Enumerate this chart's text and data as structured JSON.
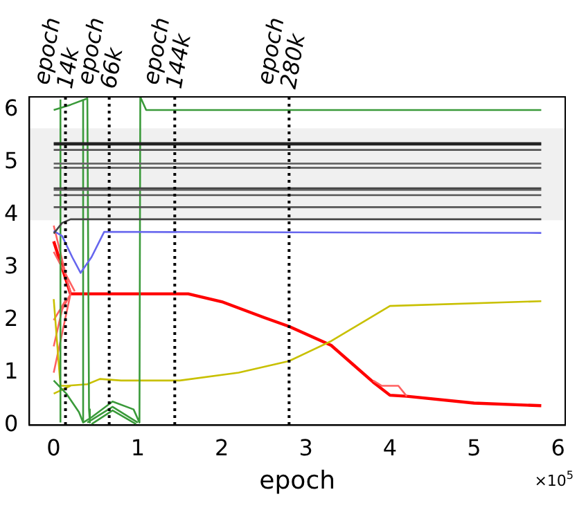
{
  "chart_data": {
    "type": "line",
    "xlabel": "epoch",
    "xlim": [
      -0.29,
      6.085
    ],
    "ylim": [
      0,
      6.25
    ],
    "xticks": [
      0,
      1,
      2,
      3,
      4,
      5,
      6
    ],
    "yticks": [
      0,
      1,
      2,
      3,
      4,
      5,
      6
    ],
    "grid": false,
    "legend": false,
    "marker": "none",
    "line_style": "solid",
    "annotations": [
      "×10$^{5}$"
    ],
    "bands": [
      {
        "axis": "y",
        "from": 3.9,
        "to": 5.65,
        "color": "#f0f0f0"
      }
    ],
    "ref_lines": [
      {
        "axis": "x",
        "value": 0.14,
        "label": "epoch 14k",
        "color": "#000000",
        "line_style": "dotted"
      },
      {
        "axis": "x",
        "value": 0.66,
        "label": "epoch 66k",
        "color": "#000000",
        "line_style": "dotted"
      },
      {
        "axis": "x",
        "value": 1.44,
        "label": "epoch 144k",
        "color": "#000000",
        "line_style": "dotted"
      },
      {
        "axis": "x",
        "value": 2.8,
        "label": "epoch 280k",
        "color": "#000000",
        "line_style": "dotted"
      }
    ],
    "series": [
      {
        "color": "#222222",
        "x": [
          0,
          5.8
        ],
        "values": [
          5.37,
          5.37
        ]
      },
      {
        "color": "#222222",
        "x": [
          0,
          5.8
        ],
        "values": [
          5.34,
          5.34
        ]
      },
      {
        "color": "#555555",
        "x": [
          0,
          5.8
        ],
        "values": [
          5.24,
          5.24
        ]
      },
      {
        "color": "#666666",
        "x": [
          0,
          5.8
        ],
        "values": [
          4.98,
          4.98
        ]
      },
      {
        "color": "#555555",
        "x": [
          0,
          5.8
        ],
        "values": [
          4.9,
          4.9
        ]
      },
      {
        "color": "#444444",
        "x": [
          0,
          5.8
        ],
        "values": [
          4.51,
          4.51
        ]
      },
      {
        "color": "#666666",
        "x": [
          0,
          5.8
        ],
        "values": [
          4.48,
          4.48
        ]
      },
      {
        "color": "#555555",
        "x": [
          0,
          5.8
        ],
        "values": [
          4.38,
          4.38
        ]
      },
      {
        "color": "#555555",
        "x": [
          0,
          5.8
        ],
        "values": [
          4.15,
          4.15
        ]
      },
      {
        "color": "#444444",
        "x": [
          0,
          0.1,
          0.2,
          5.8
        ],
        "values": [
          3.65,
          3.85,
          3.92,
          3.92
        ]
      },
      {
        "color": "#6666ee",
        "x": [
          0,
          0.1,
          0.22,
          0.32,
          0.45,
          0.6,
          5.8
        ],
        "values": [
          3.7,
          3.6,
          3.2,
          2.9,
          3.2,
          3.68,
          3.66
        ]
      },
      {
        "color": "#3a9a3a",
        "x": [
          0,
          0.2,
          0.4,
          0.42,
          0.43
        ],
        "values": [
          6.0,
          6.1,
          6.22,
          0.3,
          0.05
        ]
      },
      {
        "color": "#3a9a3a",
        "x": [
          0.08,
          0.08
        ],
        "values": [
          0.05,
          6.2
        ]
      },
      {
        "color": "#3a9a3a",
        "x": [
          0.35,
          0.35
        ],
        "values": [
          0.05,
          6.2
        ]
      },
      {
        "color": "#3a9a3a",
        "x": [
          0.4,
          0.7,
          1.0
        ],
        "values": [
          0.05,
          0.35,
          0.05
        ]
      },
      {
        "color": "#3a9a3a",
        "x": [
          0.45,
          0.7,
          0.98
        ],
        "values": [
          0.02,
          0.28,
          0.02
        ]
      },
      {
        "color": "#3a9a3a",
        "x": [
          0,
          0.15,
          0.3,
          0.35,
          0.45,
          0.7,
          0.95,
          1.02,
          1.03,
          1.1,
          5.8
        ],
        "values": [
          0.85,
          0.6,
          0.25,
          0.05,
          0.15,
          0.45,
          0.3,
          0.05,
          6.25,
          6.0,
          6.0
        ]
      },
      {
        "color": "#c8c000",
        "x": [
          0,
          0.08,
          0.15,
          0.4,
          0.55,
          0.8,
          1.5,
          2.2,
          2.8,
          3.3,
          4.0,
          5.8
        ],
        "values": [
          2.4,
          0.75,
          0.75,
          0.78,
          0.88,
          0.85,
          0.85,
          1.0,
          1.22,
          1.6,
          2.27,
          2.36
        ]
      },
      {
        "color": "#c8c000",
        "x": [
          0,
          0.2
        ],
        "values": [
          0.6,
          0.75
        ]
      },
      {
        "color": "#ff6060",
        "x": [
          0,
          0.2
        ],
        "values": [
          3.8,
          2.5
        ]
      },
      {
        "color": "#ff6060",
        "x": [
          0,
          0.2
        ],
        "values": [
          1.0,
          2.5
        ]
      },
      {
        "color": "#ff6060",
        "x": [
          0,
          0.1,
          0.25
        ],
        "values": [
          3.3,
          3.0,
          2.55
        ]
      },
      {
        "color": "#ff6060",
        "x": [
          0,
          0.15
        ],
        "values": [
          2.0,
          2.4
        ]
      },
      {
        "color": "#ff6060",
        "x": [
          0,
          0.1,
          0.2
        ],
        "values": [
          1.5,
          2.2,
          2.5
        ]
      },
      {
        "color": "#ff6060",
        "x": [
          3.8,
          3.9,
          4.1,
          4.2
        ],
        "values": [
          0.85,
          0.75,
          0.75,
          0.55
        ]
      },
      {
        "color": "#ff0000",
        "x": [
          0,
          0.2,
          1.6,
          2.0,
          2.5,
          2.8,
          3.3,
          3.8,
          4.0,
          4.2,
          5.0,
          5.8
        ],
        "values": [
          3.5,
          2.5,
          2.5,
          2.35,
          2.05,
          1.88,
          1.52,
          0.82,
          0.57,
          0.55,
          0.42,
          0.37
        ]
      }
    ]
  }
}
